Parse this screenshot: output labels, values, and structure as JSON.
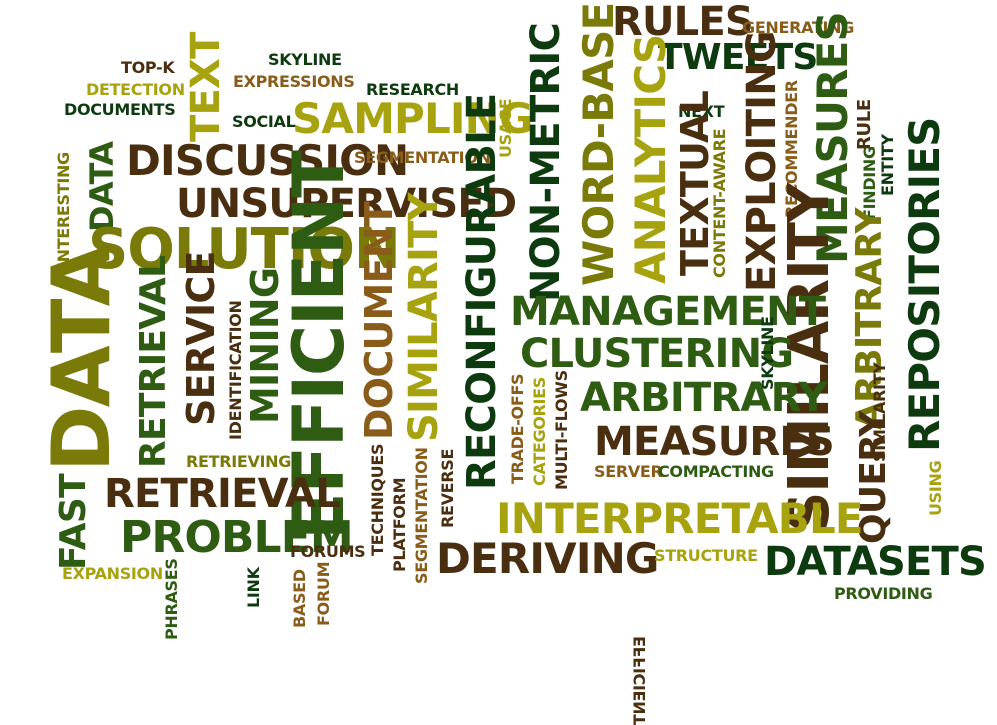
{
  "word_cloud": {
    "words": [
      "RULES",
      "GENERATING",
      "TWEETS",
      "TOP-K",
      "SKYLINE",
      "EXPRESSIONS",
      "RESEARCH",
      "DETECTION",
      "DOCUMENTS",
      "SOCIAL",
      "SAMPLING",
      "TEXT",
      "NEXT",
      "DISCUSSION",
      "SEGMENTATION",
      "DATA",
      "USAGE",
      "UNSUPERVISED",
      "INTERESTING",
      "SOLUTION",
      "WORD-BASED",
      "NON-METRIC",
      "ANALYTICS",
      "TEXTUAL",
      "EXPLOITING",
      "MEASURES",
      "RULE",
      "FINDING",
      "ENTITY",
      "RECOMMENDER",
      "CONTENT-AWARE",
      "REPOSITORIES",
      "ARBITRARY",
      "SIMILARITY",
      "RECONFIGURABLE",
      "MANAGEMENT",
      "CLUSTERING",
      "DATA",
      "RETRIEVAL",
      "SERVICE",
      "MINING",
      "IDENTIFICATION",
      "EFFICIENT",
      "DOCUMENT",
      "SIMILARITY",
      "SKYLINE",
      "ARBITRARY",
      "TRADE-OFFS",
      "CATEGORIES",
      "MULTI-FLOWS",
      "MEASURES",
      "QUERY",
      "RETRIEVING",
      "RETRIEVAL",
      "SERVER",
      "COMPACTING",
      "USING",
      "FAST",
      "PROBLEM",
      "TECHNIQUES",
      "REVERSE",
      "SEGMENTATION",
      "INTERPRETABLE",
      "EXPANSION",
      "PLATFORM",
      "FORUMS",
      "DERIVING",
      "STRUCTURE",
      "DATASETS",
      "EFFICIENT",
      "PHRASES",
      "LINK",
      "BASED",
      "FORUM",
      "PROVIDING",
      "SIMILARITY"
    ]
  }
}
